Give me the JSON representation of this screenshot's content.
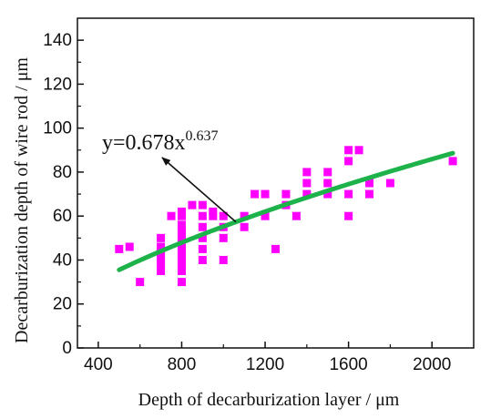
{
  "chart_data": {
    "type": "scatter",
    "xlabel": "Depth of decarburization layer / μm",
    "ylabel": "Decarburization depth of wire rod / μm",
    "xlim": [
      300,
      2200
    ],
    "ylim": [
      0,
      150
    ],
    "xticks": [
      400,
      800,
      1200,
      1600,
      2000
    ],
    "yticks": [
      0,
      20,
      40,
      60,
      80,
      100,
      120,
      140
    ],
    "grid": false,
    "points": [
      [
        500,
        45
      ],
      [
        550,
        46
      ],
      [
        600,
        30
      ],
      [
        700,
        35
      ],
      [
        700,
        38
      ],
      [
        700,
        40
      ],
      [
        700,
        43
      ],
      [
        700,
        46
      ],
      [
        700,
        50
      ],
      [
        750,
        60
      ],
      [
        800,
        30
      ],
      [
        800,
        35
      ],
      [
        800,
        38
      ],
      [
        800,
        40
      ],
      [
        800,
        43
      ],
      [
        800,
        46
      ],
      [
        800,
        50
      ],
      [
        800,
        53
      ],
      [
        800,
        56
      ],
      [
        800,
        60
      ],
      [
        800,
        62
      ],
      [
        850,
        65
      ],
      [
        900,
        40
      ],
      [
        900,
        45
      ],
      [
        900,
        50
      ],
      [
        900,
        55
      ],
      [
        900,
        60
      ],
      [
        900,
        65
      ],
      [
        950,
        60
      ],
      [
        950,
        62
      ],
      [
        1000,
        40
      ],
      [
        1000,
        50
      ],
      [
        1000,
        55
      ],
      [
        1000,
        60
      ],
      [
        1100,
        55
      ],
      [
        1100,
        60
      ],
      [
        1150,
        70
      ],
      [
        1200,
        60
      ],
      [
        1200,
        70
      ],
      [
        1250,
        45
      ],
      [
        1300,
        65
      ],
      [
        1300,
        70
      ],
      [
        1350,
        60
      ],
      [
        1400,
        70
      ],
      [
        1400,
        75
      ],
      [
        1400,
        80
      ],
      [
        1500,
        70
      ],
      [
        1500,
        75
      ],
      [
        1500,
        80
      ],
      [
        1600,
        60
      ],
      [
        1600,
        70
      ],
      [
        1600,
        85
      ],
      [
        1600,
        90
      ],
      [
        1650,
        90
      ],
      [
        1700,
        70
      ],
      [
        1700,
        75
      ],
      [
        1800,
        75
      ],
      [
        2100,
        85
      ]
    ],
    "fit": {
      "equation": "y=0.678x",
      "exponent_label": "0.637",
      "a": 0.678,
      "b": 0.637,
      "x_range": [
        500,
        2100
      ]
    },
    "colors": {
      "points": "#ff00ff",
      "fit_line": "#1db34a",
      "axis": "#111111"
    }
  }
}
